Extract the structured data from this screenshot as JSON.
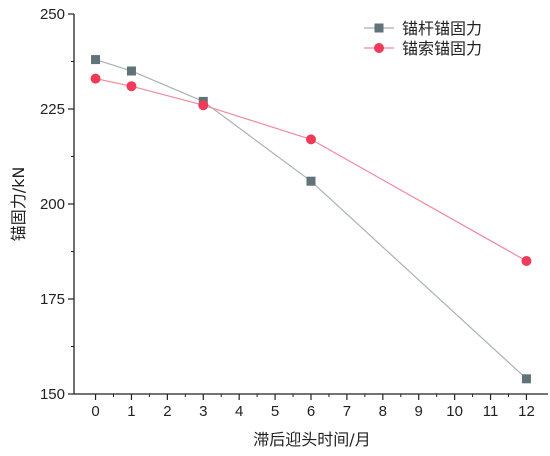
{
  "chart_data": {
    "type": "line",
    "title": "",
    "xlabel": "滞后迎头时间/月",
    "ylabel": "锚固力/kN",
    "xlim": [
      -0.6,
      12.6
    ],
    "ylim": [
      150,
      250
    ],
    "x_ticks": [
      0,
      1,
      2,
      3,
      4,
      5,
      6,
      7,
      8,
      9,
      10,
      11,
      12
    ],
    "y_ticks": [
      150,
      175,
      200,
      225,
      250
    ],
    "legend_position": "top-right",
    "grid": false,
    "series": [
      {
        "name": "锚杆锚固力",
        "marker": "square",
        "marker_color": "#5f7378",
        "line_color": "#a9b2b5",
        "x": [
          0,
          1,
          3,
          6,
          12
        ],
        "values": [
          238,
          235,
          227,
          206,
          154
        ]
      },
      {
        "name": "锚索锚固力",
        "marker": "circle",
        "marker_color": "#ef3a5a",
        "line_color": "#f08a9c",
        "x": [
          0,
          1,
          3,
          6,
          12
        ],
        "values": [
          233,
          231,
          226,
          217,
          185
        ]
      }
    ]
  }
}
